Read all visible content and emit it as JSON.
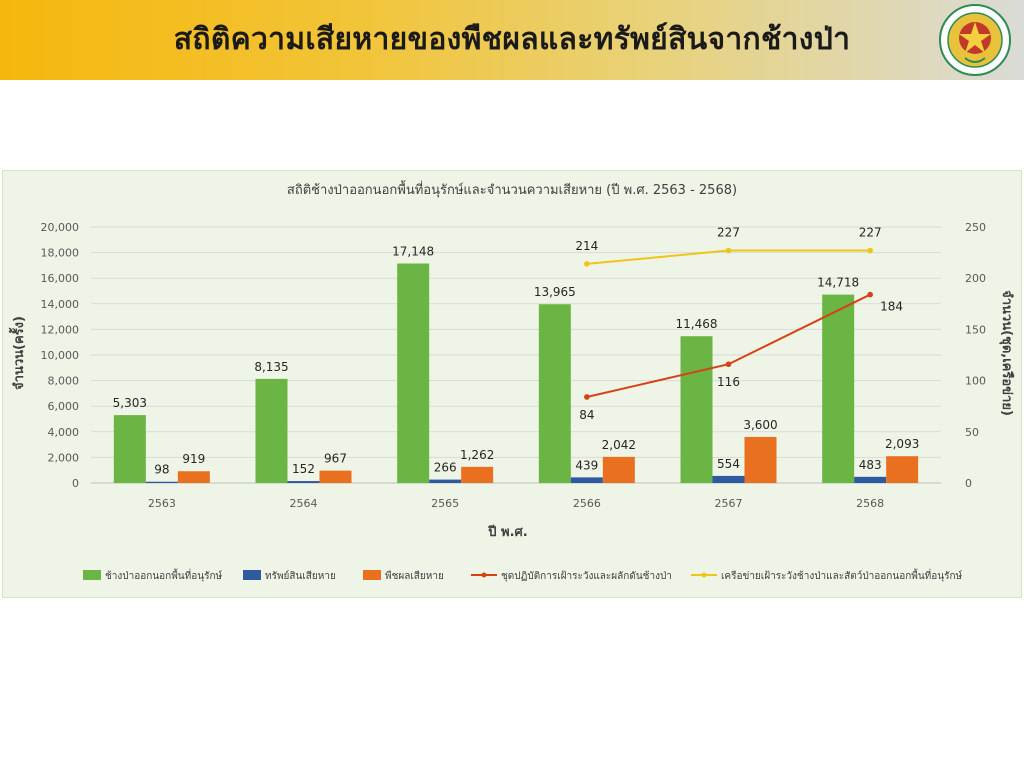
{
  "header": {
    "title": "สถิติความเสียหายของพืชผลและทรัพย์สินจากช้างป่า"
  },
  "colors": {
    "elephants": "#6ab544",
    "property": "#2f5aa0",
    "crops": "#e9701f",
    "patrol_units": "#d64216",
    "network": "#f0c419",
    "panel_bg": "#eff5e6"
  },
  "chart_data": {
    "type": "bar",
    "title": "สถิติช้างป่าออกนอกพื้นที่อนุรักษ์และจำนวนความเสียหาย  (ปี พ.ศ. 2563 - 2568)",
    "xlabel": "ปี พ.ศ.",
    "ylabel": "จำนวน(ครั้ง)",
    "y2label": "จำนวน(ชุด,เครือข่าย)",
    "ylim": [
      0,
      20000
    ],
    "y2lim": [
      0,
      250
    ],
    "yticks": [
      "0",
      "2,000",
      "4,000",
      "6,000",
      "8,000",
      "10,000",
      "12,000",
      "14,000",
      "16,000",
      "18,000",
      "20,000"
    ],
    "y2ticks": [
      "0",
      "50",
      "100",
      "150",
      "200",
      "250"
    ],
    "grid": true,
    "legend_position": "bottom",
    "categories": [
      "2563",
      "2564",
      "2565",
      "2566",
      "2567",
      "2568"
    ],
    "series": [
      {
        "name": "ช้างป่าออกนอกพื้นที่อนุรักษ์",
        "type": "bar",
        "axis": "left",
        "color": "#6ab544",
        "values": [
          5303,
          8135,
          17148,
          13965,
          11468,
          14718
        ],
        "labels": [
          "5,303",
          "8,135",
          "17,148",
          "13,965",
          "11,468",
          "14,718"
        ]
      },
      {
        "name": "ทรัพย์สินเสียหาย",
        "type": "bar",
        "axis": "left",
        "color": "#2f5aa0",
        "values": [
          98,
          152,
          266,
          439,
          554,
          483
        ],
        "labels": [
          "98",
          "152",
          "266",
          "439",
          "554",
          "483"
        ]
      },
      {
        "name": "พืชผลเสียหาย",
        "type": "bar",
        "axis": "left",
        "color": "#e9701f",
        "values": [
          919,
          967,
          1262,
          2042,
          3600,
          2093
        ],
        "labels": [
          "919",
          "967",
          "1,262",
          "2,042",
          "3,600",
          "2,093"
        ]
      },
      {
        "name": "ชุดปฏิบัติการเฝ้าระวังและผลักดันช้างป่า",
        "type": "line",
        "axis": "right",
        "color": "#d64216",
        "values": [
          null,
          null,
          null,
          84,
          116,
          184
        ],
        "labels": [
          "",
          "",
          "",
          "84",
          "116",
          "184"
        ]
      },
      {
        "name": "เครือข่ายเฝ้าระวังช้างป่าและสัตว์ป่าออกนอกพื้นที่อนุรักษ์",
        "type": "line",
        "axis": "right",
        "color": "#f0c419",
        "values": [
          null,
          null,
          null,
          214,
          227,
          227
        ],
        "labels": [
          "",
          "",
          "",
          "214",
          "227",
          "227"
        ]
      }
    ]
  }
}
